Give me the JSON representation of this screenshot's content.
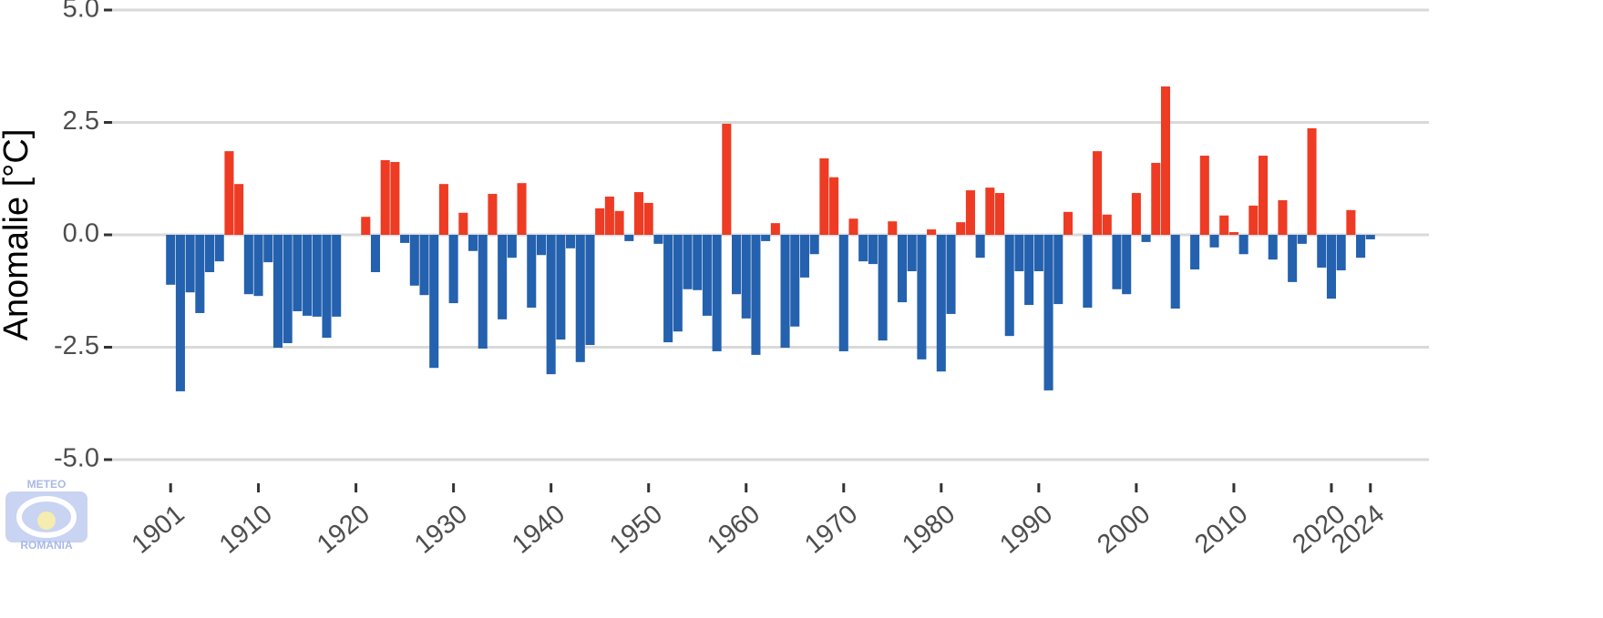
{
  "chart_data": {
    "type": "bar",
    "y_label": "Anomalie [°C]",
    "watermark": [
      "METEO",
      "ROMANIA"
    ],
    "x": [
      1901,
      1902,
      1903,
      1904,
      1905,
      1906,
      1907,
      1908,
      1909,
      1910,
      1911,
      1912,
      1913,
      1914,
      1915,
      1916,
      1917,
      1918,
      1919,
      1920,
      1921,
      1922,
      1923,
      1924,
      1925,
      1926,
      1927,
      1928,
      1929,
      1930,
      1931,
      1932,
      1933,
      1934,
      1935,
      1936,
      1937,
      1938,
      1939,
      1940,
      1941,
      1942,
      1943,
      1944,
      1945,
      1946,
      1947,
      1948,
      1949,
      1950,
      1951,
      1952,
      1953,
      1954,
      1955,
      1956,
      1957,
      1958,
      1959,
      1960,
      1961,
      1962,
      1963,
      1964,
      1965,
      1966,
      1967,
      1968,
      1969,
      1970,
      1971,
      1972,
      1973,
      1974,
      1975,
      1976,
      1977,
      1978,
      1979,
      1980,
      1981,
      1982,
      1983,
      1984,
      1985,
      1986,
      1987,
      1988,
      1989,
      1990,
      1991,
      1992,
      1993,
      1994,
      1995,
      1996,
      1997,
      1998,
      1999,
      2000,
      2001,
      2002,
      2003,
      2004,
      2005,
      2006,
      2007,
      2008,
      2009,
      2010,
      2011,
      2012,
      2013,
      2014,
      2015,
      2016,
      2017,
      2018,
      2019,
      2020,
      2021,
      2022,
      2023,
      2024
    ],
    "values": [
      -1.11,
      -3.48,
      -1.28,
      -1.74,
      -0.83,
      -0.59,
      1.86,
      1.13,
      -1.32,
      -1.36,
      -0.61,
      -2.51,
      -2.41,
      -1.7,
      -1.8,
      -1.82,
      -2.29,
      -1.82,
      0,
      0,
      0.4,
      -0.83,
      1.66,
      1.62,
      -0.18,
      -1.13,
      -1.34,
      -2.96,
      1.13,
      -1.52,
      0.49,
      -0.36,
      -2.53,
      0.91,
      -1.88,
      -0.51,
      1.15,
      -1.62,
      -0.45,
      -3.1,
      -2.33,
      -0.3,
      -2.83,
      -2.45,
      0.59,
      0.85,
      0.53,
      -0.14,
      0.95,
      0.71,
      -0.2,
      -2.39,
      -2.15,
      -1.21,
      -1.23,
      -1.8,
      -2.59,
      2.47,
      -1.32,
      -1.86,
      -2.67,
      -0.14,
      0.26,
      -2.51,
      -2.04,
      -0.95,
      -0.43,
      1.7,
      1.28,
      -2.59,
      0.36,
      -0.59,
      -0.65,
      -2.35,
      0.3,
      -1.5,
      -0.81,
      -2.77,
      0.12,
      -3.04,
      -1.76,
      0.28,
      0.99,
      -0.51,
      1.05,
      0.93,
      -2.25,
      -0.81,
      -1.56,
      -0.81,
      -3.46,
      -1.54,
      0.51,
      0,
      -1.62,
      1.86,
      0.45,
      -1.21,
      -1.32,
      0.93,
      -0.16,
      1.6,
      3.3,
      -1.64,
      0,
      -0.77,
      1.76,
      -0.28,
      0.43,
      0.06,
      -0.43,
      0.65,
      1.76,
      -0.55,
      0.77,
      -1.05,
      -0.2,
      2.37,
      -0.73,
      -1.42,
      -0.79,
      0.55,
      -0.51,
      -0.1
    ],
    "colors": {
      "positive": "#ee3b24",
      "negative": "#2461ae"
    },
    "xlim": [
      1895,
      2030
    ],
    "xticks": [
      1901,
      1910,
      1920,
      1930,
      1940,
      1950,
      1960,
      1970,
      1980,
      1990,
      2000,
      2010,
      2020,
      2024
    ],
    "ylim": [
      -5,
      5
    ],
    "yticks": [
      {
        "value": 5,
        "label": "5.0"
      },
      {
        "value": 2.5,
        "label": "2.5"
      },
      {
        "value": 0,
        "label": "0.0"
      },
      {
        "value": -2.5,
        "label": "-2.5"
      },
      {
        "value": -5,
        "label": "-5.0"
      }
    ],
    "grid": true
  }
}
